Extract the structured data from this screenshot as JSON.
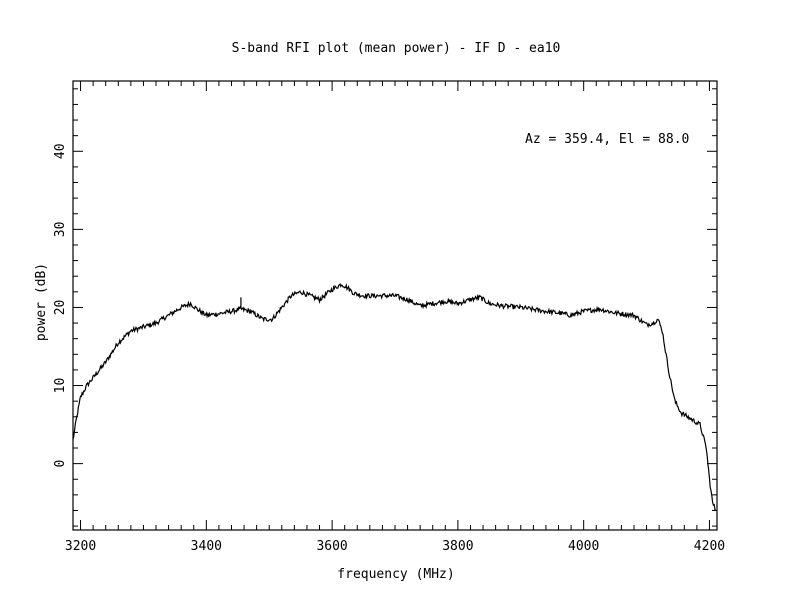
{
  "chart_data": {
    "type": "line",
    "title": "S-band RFI plot (mean power) - IF D - ea10",
    "xlabel": "frequency (MHz)",
    "ylabel": "power (dB)",
    "annotation": "Az = 359.4, El = 88.0",
    "xlim": [
      3188,
      4212
    ],
    "ylim": [
      -8.5,
      49
    ],
    "xticks": [
      3200,
      3400,
      3600,
      3800,
      4000,
      4200
    ],
    "yticks": [
      0,
      10,
      20,
      30,
      40
    ],
    "x_minor_step": 20,
    "y_minor_step": 2,
    "grid": false,
    "line_color": "#000000",
    "series": [
      {
        "x": [
          3188,
          3193,
          3200,
          3210,
          3220,
          3240,
          3260,
          3280,
          3300,
          3320,
          3340,
          3360,
          3375,
          3385,
          3400,
          3420,
          3440,
          3455,
          3470,
          3490,
          3505,
          3520,
          3535,
          3550,
          3565,
          3580,
          3600,
          3615,
          3625,
          3635,
          3650,
          3680,
          3700,
          3720,
          3740,
          3760,
          3780,
          3800,
          3820,
          3835,
          3850,
          3870,
          3900,
          3940,
          3960,
          3980,
          4000,
          4025,
          4050,
          4080,
          4100,
          4110,
          4118,
          4125,
          4135,
          4145,
          4155,
          4165,
          4175,
          4185,
          4195,
          4200,
          4205,
          4210
        ],
        "y": [
          3,
          5.5,
          8.5,
          10,
          11,
          13,
          15.5,
          17,
          17.5,
          18,
          19,
          20,
          20.5,
          19.8,
          19,
          19.2,
          19.5,
          19.8,
          19.5,
          18.5,
          18.5,
          20,
          21.5,
          22,
          21.5,
          21,
          22.3,
          23,
          22.5,
          21.8,
          21.5,
          21.5,
          21.5,
          21,
          20.2,
          20.5,
          20.8,
          20.5,
          21,
          21.3,
          20.5,
          20.2,
          20,
          19.5,
          19.3,
          19,
          19.5,
          19.8,
          19.3,
          19,
          17.8,
          18,
          18.5,
          17,
          12,
          8,
          6.5,
          6,
          5.5,
          5,
          2,
          -2,
          -5,
          -6
        ]
      }
    ]
  }
}
